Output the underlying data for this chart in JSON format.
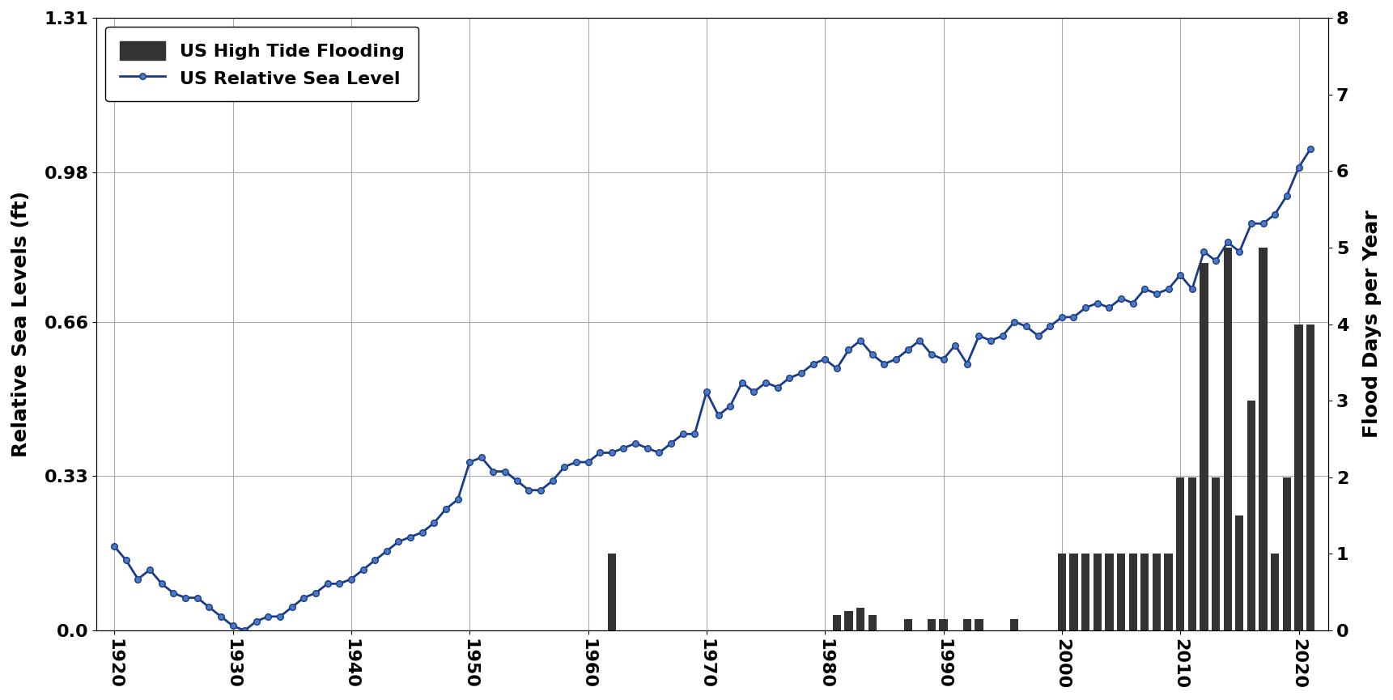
{
  "ylabel_left": "Relative Sea Levels (ft)",
  "ylabel_right": "Flood Days per Year",
  "ylim_left": [
    0.0,
    1.31
  ],
  "ylim_right": [
    0,
    8
  ],
  "xlim": [
    1918.5,
    2022.5
  ],
  "yticks_left": [
    0.0,
    0.33,
    0.66,
    0.98,
    1.31
  ],
  "yticks_right": [
    0,
    1,
    2,
    3,
    4,
    5,
    6,
    7,
    8
  ],
  "xticks": [
    1920,
    1930,
    1940,
    1950,
    1960,
    1970,
    1980,
    1990,
    2000,
    2010,
    2020
  ],
  "sea_level_years": [
    1920,
    1921,
    1922,
    1923,
    1924,
    1925,
    1926,
    1927,
    1928,
    1929,
    1930,
    1931,
    1932,
    1933,
    1934,
    1935,
    1936,
    1937,
    1938,
    1939,
    1940,
    1941,
    1942,
    1943,
    1944,
    1945,
    1946,
    1947,
    1948,
    1949,
    1950,
    1951,
    1952,
    1953,
    1954,
    1955,
    1956,
    1957,
    1958,
    1959,
    1960,
    1961,
    1962,
    1963,
    1964,
    1965,
    1966,
    1967,
    1968,
    1969,
    1970,
    1971,
    1972,
    1973,
    1974,
    1975,
    1976,
    1977,
    1978,
    1979,
    1980,
    1981,
    1982,
    1983,
    1984,
    1985,
    1986,
    1987,
    1988,
    1989,
    1990,
    1991,
    1992,
    1993,
    1994,
    1995,
    1996,
    1997,
    1998,
    1999,
    2000,
    2001,
    2002,
    2003,
    2004,
    2005,
    2006,
    2007,
    2008,
    2009,
    2010,
    2011,
    2012,
    2013,
    2014,
    2015,
    2016,
    2017,
    2018,
    2019,
    2020,
    2021
  ],
  "sea_level_values": [
    0.18,
    0.15,
    0.11,
    0.13,
    0.1,
    0.08,
    0.07,
    0.07,
    0.05,
    0.03,
    0.01,
    0.0,
    0.02,
    0.03,
    0.03,
    0.05,
    0.07,
    0.08,
    0.1,
    0.1,
    0.11,
    0.13,
    0.15,
    0.17,
    0.19,
    0.2,
    0.21,
    0.23,
    0.26,
    0.28,
    0.36,
    0.37,
    0.34,
    0.34,
    0.32,
    0.3,
    0.3,
    0.32,
    0.35,
    0.36,
    0.36,
    0.38,
    0.38,
    0.39,
    0.4,
    0.39,
    0.38,
    0.4,
    0.42,
    0.42,
    0.51,
    0.46,
    0.48,
    0.53,
    0.51,
    0.53,
    0.52,
    0.54,
    0.55,
    0.57,
    0.58,
    0.56,
    0.6,
    0.62,
    0.59,
    0.57,
    0.58,
    0.6,
    0.62,
    0.59,
    0.58,
    0.61,
    0.57,
    0.63,
    0.62,
    0.63,
    0.66,
    0.65,
    0.63,
    0.65,
    0.67,
    0.67,
    0.69,
    0.7,
    0.69,
    0.71,
    0.7,
    0.73,
    0.72,
    0.73,
    0.76,
    0.73,
    0.81,
    0.79,
    0.83,
    0.81,
    0.87,
    0.87,
    0.89,
    0.93,
    0.99,
    1.03
  ],
  "flood_years": [
    1920,
    1921,
    1922,
    1923,
    1924,
    1925,
    1926,
    1927,
    1928,
    1929,
    1930,
    1931,
    1932,
    1933,
    1934,
    1935,
    1936,
    1937,
    1938,
    1939,
    1940,
    1941,
    1942,
    1943,
    1944,
    1945,
    1946,
    1947,
    1948,
    1949,
    1950,
    1951,
    1952,
    1953,
    1954,
    1955,
    1956,
    1957,
    1958,
    1959,
    1960,
    1961,
    1962,
    1963,
    1964,
    1965,
    1966,
    1967,
    1968,
    1969,
    1970,
    1971,
    1972,
    1973,
    1974,
    1975,
    1976,
    1977,
    1978,
    1979,
    1980,
    1981,
    1982,
    1983,
    1984,
    1985,
    1986,
    1987,
    1988,
    1989,
    1990,
    1991,
    1992,
    1993,
    1994,
    1995,
    1996,
    1997,
    1998,
    1999,
    2000,
    2001,
    2002,
    2003,
    2004,
    2005,
    2006,
    2007,
    2008,
    2009,
    2010,
    2011,
    2012,
    2013,
    2014,
    2015,
    2016,
    2017,
    2018,
    2019,
    2020,
    2021
  ],
  "flood_values": [
    0,
    0,
    0,
    0,
    0,
    0,
    0,
    0,
    0,
    0,
    0,
    0,
    0,
    0,
    0,
    0,
    0,
    0,
    0,
    0,
    0,
    0,
    0,
    0,
    0,
    0,
    0,
    0,
    0,
    0,
    0,
    0,
    0,
    0,
    0,
    0,
    0,
    0,
    0,
    0,
    0,
    0,
    1,
    0,
    0,
    0,
    0,
    0,
    0,
    0,
    0,
    0,
    0,
    0,
    0,
    0,
    0,
    0,
    0,
    0,
    0,
    0.2,
    0.25,
    0.3,
    0.2,
    0,
    0,
    0.15,
    0,
    0.15,
    0.15,
    0,
    0.15,
    0.15,
    0,
    0,
    0.15,
    0,
    0,
    0,
    1,
    1,
    1,
    1,
    1,
    1,
    1,
    1,
    1,
    1,
    2,
    2,
    4.8,
    2,
    5,
    1.5,
    3,
    5,
    1,
    2,
    4,
    4
  ],
  "line_color": "#1a3a8a",
  "bar_color": "#333333",
  "marker_color": "#4a7abf",
  "background_color": "#ffffff",
  "grid_color": "#aaaaaa",
  "fontsize_ticks": 16,
  "fontsize_labels": 18,
  "fontsize_legend": 16
}
